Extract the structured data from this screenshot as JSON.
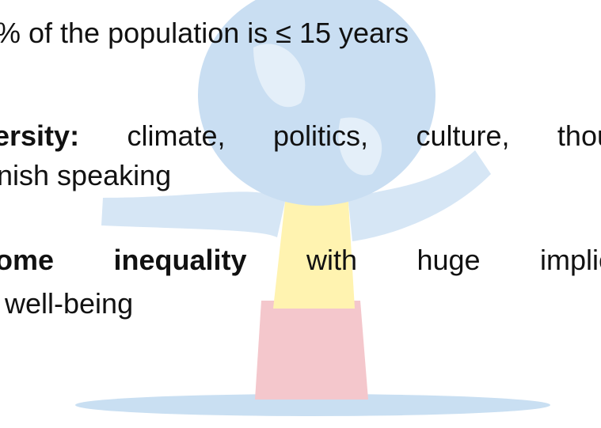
{
  "lines": [
    {
      "text": "% of the population is ≤ 15 years"
    },
    {
      "bold": "ersity:",
      "text": " climate, politics, culture, thou"
    },
    {
      "text": "nish speaking"
    },
    {
      "bold": "ome inequality",
      "text": " with huge implic"
    },
    {
      "text": "well-being"
    }
  ]
}
